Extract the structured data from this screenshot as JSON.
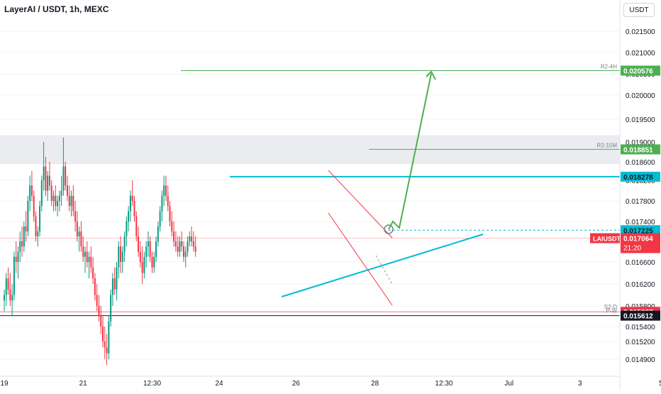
{
  "header": {
    "title": "LayerAI / USDT, 1h, MEXC",
    "currency": "USDT"
  },
  "colors": {
    "up": "#089981",
    "down": "#f23645",
    "cyan": "#00bcd4",
    "green": "#4caf50",
    "red_badge": "#f23645",
    "black_badge": "#131722",
    "zone": "#e7e9ed"
  },
  "chart_data": {
    "type": "candlestick",
    "symbol": "LAIUSDT",
    "interval": "1h",
    "exchange": "MEXC",
    "ylim": [
      0.0147,
      0.0217
    ],
    "y_ticks": [
      "0.021500",
      "0.021000",
      "0.020500",
      "0.020000",
      "0.019500",
      "0.019000",
      "0.018600",
      "0.018200",
      "0.017800",
      "0.017400",
      "0.017000",
      "0.016600",
      "0.016200",
      "0.015800",
      "0.015400",
      "0.015200",
      "0.014900"
    ],
    "y_tick_values": [
      0.0215,
      0.021,
      0.0205,
      0.02,
      0.0195,
      0.019,
      0.0186,
      0.0182,
      0.0178,
      0.0174,
      0.017,
      0.0166,
      0.0162,
      0.0158,
      0.0154,
      0.0152,
      0.0149
    ],
    "x_ticks": [
      "19",
      "21",
      "12:30",
      "24",
      "26",
      "28",
      "12:30",
      "Jul",
      "3",
      "5"
    ],
    "x_tick_bars": [
      0,
      40,
      75,
      109,
      148,
      188,
      223,
      256,
      292,
      333
    ],
    "resistance_zone": [
      0.01855,
      0.01915
    ],
    "price_badges": [
      {
        "label": "R2-4H",
        "value": "0.020576",
        "kind": "green"
      },
      {
        "label": "R2-15M",
        "value": "0.018851",
        "kind": "green"
      },
      {
        "label": "",
        "value": "0.018278",
        "kind": "cyan"
      },
      {
        "label": "",
        "value": "0.017225",
        "kind": "cyan"
      },
      {
        "label": "",
        "value": "0.015687",
        "kind": "red"
      },
      {
        "label": "",
        "value": "0.015612",
        "kind": "black"
      }
    ],
    "current": {
      "symbol": "LAIUSDT",
      "value": "0.017064",
      "countdown": "21:20"
    },
    "line_labels": {
      "s2d": "S2-D",
      "pw": "P-W"
    },
    "levels": {
      "r2_4h": 0.020576,
      "r2_15m": 0.018851,
      "resistance": 0.018278,
      "target_dotted": 0.017225,
      "current": 0.017064,
      "s2d": 0.015687,
      "pw": 0.015612
    },
    "candles": [
      [
        0.0159,
        0.0161,
        0.0157,
        0.016
      ],
      [
        0.016,
        0.0164,
        0.0158,
        0.0163
      ],
      [
        0.0163,
        0.0165,
        0.016,
        0.0161
      ],
      [
        0.0161,
        0.0164,
        0.0158,
        0.0159
      ],
      [
        0.0159,
        0.0162,
        0.0156,
        0.016
      ],
      [
        0.016,
        0.0168,
        0.0159,
        0.0167
      ],
      [
        0.0167,
        0.017,
        0.0164,
        0.0166
      ],
      [
        0.0166,
        0.0169,
        0.0163,
        0.0168
      ],
      [
        0.0168,
        0.0172,
        0.0166,
        0.017
      ],
      [
        0.017,
        0.0173,
        0.0167,
        0.0169
      ],
      [
        0.0169,
        0.0174,
        0.0168,
        0.0173
      ],
      [
        0.0173,
        0.0176,
        0.017,
        0.0172
      ],
      [
        0.0172,
        0.0179,
        0.0171,
        0.0178
      ],
      [
        0.0178,
        0.0183,
        0.0176,
        0.0181
      ],
      [
        0.0181,
        0.0184,
        0.0178,
        0.0179
      ],
      [
        0.0179,
        0.018,
        0.0174,
        0.0175
      ],
      [
        0.0175,
        0.0176,
        0.017,
        0.0171
      ],
      [
        0.0171,
        0.0173,
        0.0169,
        0.0172
      ],
      [
        0.0172,
        0.0178,
        0.0171,
        0.0177
      ],
      [
        0.0177,
        0.0183,
        0.0176,
        0.0182
      ],
      [
        0.0182,
        0.019,
        0.018,
        0.0185
      ],
      [
        0.0185,
        0.0187,
        0.0179,
        0.018
      ],
      [
        0.018,
        0.0184,
        0.0178,
        0.0183
      ],
      [
        0.0183,
        0.0186,
        0.018,
        0.0181
      ],
      [
        0.0181,
        0.0182,
        0.0177,
        0.0178
      ],
      [
        0.0178,
        0.018,
        0.0176,
        0.0179
      ],
      [
        0.0179,
        0.0181,
        0.0176,
        0.0177
      ],
      [
        0.0177,
        0.0179,
        0.0175,
        0.0178
      ],
      [
        0.0178,
        0.018,
        0.0176,
        0.0179
      ],
      [
        0.0179,
        0.0183,
        0.0177,
        0.018
      ],
      [
        0.018,
        0.0191,
        0.0179,
        0.0185
      ],
      [
        0.0185,
        0.0186,
        0.018,
        0.0181
      ],
      [
        0.0181,
        0.0183,
        0.0178,
        0.0179
      ],
      [
        0.0179,
        0.0181,
        0.0176,
        0.0177
      ],
      [
        0.0177,
        0.018,
        0.0175,
        0.0179
      ],
      [
        0.0179,
        0.0181,
        0.0175,
        0.0176
      ],
      [
        0.0176,
        0.0178,
        0.0172,
        0.0174
      ],
      [
        0.0174,
        0.0176,
        0.017,
        0.0171
      ],
      [
        0.0171,
        0.0173,
        0.0168,
        0.0172
      ],
      [
        0.0172,
        0.0174,
        0.0168,
        0.0169
      ],
      [
        0.0169,
        0.0171,
        0.0166,
        0.0167
      ],
      [
        0.0167,
        0.0169,
        0.0164,
        0.0168
      ],
      [
        0.0168,
        0.017,
        0.0165,
        0.0166
      ],
      [
        0.0166,
        0.0168,
        0.0163,
        0.0167
      ],
      [
        0.0167,
        0.0169,
        0.0164,
        0.0165
      ],
      [
        0.0165,
        0.0167,
        0.0162,
        0.0163
      ],
      [
        0.0163,
        0.0164,
        0.0159,
        0.016
      ],
      [
        0.016,
        0.0162,
        0.0157,
        0.0158
      ],
      [
        0.0158,
        0.016,
        0.0155,
        0.0156
      ],
      [
        0.0156,
        0.0158,
        0.0153,
        0.0154
      ],
      [
        0.0154,
        0.0156,
        0.0151,
        0.0152
      ],
      [
        0.0152,
        0.0154,
        0.0149,
        0.0151
      ],
      [
        0.0151,
        0.0153,
        0.0148,
        0.015
      ],
      [
        0.015,
        0.0156,
        0.0149,
        0.0155
      ],
      [
        0.0155,
        0.0161,
        0.0154,
        0.016
      ],
      [
        0.016,
        0.0164,
        0.0158,
        0.0163
      ],
      [
        0.0163,
        0.0165,
        0.016,
        0.0161
      ],
      [
        0.0161,
        0.0166,
        0.0159,
        0.0165
      ],
      [
        0.0165,
        0.017,
        0.0163,
        0.0169
      ],
      [
        0.0169,
        0.0171,
        0.0164,
        0.0166
      ],
      [
        0.0166,
        0.0169,
        0.0164,
        0.0168
      ],
      [
        0.0168,
        0.0172,
        0.0166,
        0.0171
      ],
      [
        0.0171,
        0.0175,
        0.0169,
        0.0174
      ],
      [
        0.0174,
        0.0177,
        0.0172,
        0.0176
      ],
      [
        0.0176,
        0.018,
        0.0174,
        0.0179
      ],
      [
        0.0179,
        0.0182,
        0.0177,
        0.0178
      ],
      [
        0.0178,
        0.0179,
        0.0174,
        0.0175
      ],
      [
        0.0175,
        0.0176,
        0.017,
        0.0171
      ],
      [
        0.0171,
        0.0173,
        0.0167,
        0.0168
      ],
      [
        0.0168,
        0.017,
        0.0165,
        0.0166
      ],
      [
        0.0166,
        0.0169,
        0.0162,
        0.0164
      ],
      [
        0.0164,
        0.0168,
        0.0163,
        0.0167
      ],
      [
        0.0167,
        0.017,
        0.0165,
        0.0169
      ],
      [
        0.0169,
        0.0172,
        0.0167,
        0.017
      ],
      [
        0.017,
        0.0171,
        0.0166,
        0.0167
      ],
      [
        0.0167,
        0.0168,
        0.0164,
        0.0165
      ],
      [
        0.0165,
        0.0168,
        0.0164,
        0.0167
      ],
      [
        0.0167,
        0.0171,
        0.0166,
        0.017
      ],
      [
        0.017,
        0.0174,
        0.0169,
        0.0173
      ],
      [
        0.0173,
        0.0177,
        0.0172,
        0.0176
      ],
      [
        0.0176,
        0.018,
        0.0174,
        0.0179
      ],
      [
        0.0179,
        0.0183,
        0.0177,
        0.0181
      ],
      [
        0.0181,
        0.0183,
        0.0178,
        0.0179
      ],
      [
        0.0179,
        0.0181,
        0.0176,
        0.0177
      ],
      [
        0.0177,
        0.0178,
        0.0173,
        0.0174
      ],
      [
        0.0174,
        0.0176,
        0.0171,
        0.0172
      ],
      [
        0.0172,
        0.0174,
        0.0169,
        0.017
      ],
      [
        0.017,
        0.0172,
        0.0168,
        0.0169
      ],
      [
        0.0169,
        0.0171,
        0.0167,
        0.0168
      ],
      [
        0.0168,
        0.0171,
        0.0167,
        0.017
      ],
      [
        0.017,
        0.0172,
        0.0168,
        0.0169
      ],
      [
        0.0169,
        0.017,
        0.0166,
        0.0167
      ],
      [
        0.0167,
        0.0169,
        0.0165,
        0.0168
      ],
      [
        0.0168,
        0.0171,
        0.0167,
        0.017
      ],
      [
        0.017,
        0.0172,
        0.0169,
        0.0171
      ],
      [
        0.0171,
        0.0173,
        0.0169,
        0.017
      ],
      [
        0.017,
        0.0172,
        0.0168,
        0.0169
      ],
      [
        0.0169,
        0.0171,
        0.0167,
        0.0168
      ]
    ]
  }
}
